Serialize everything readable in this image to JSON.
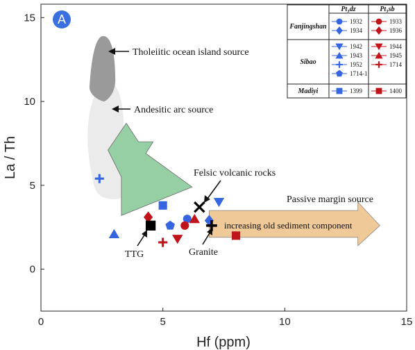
{
  "panel_badge": "A",
  "chart_data": {
    "type": "scatter",
    "xlabel": "Hf (ppm)",
    "ylabel": "La / Th",
    "xlim": [
      0,
      15
    ],
    "ylim": [
      -2.5,
      15.8
    ],
    "x_ticks": [
      0,
      5,
      10,
      15
    ],
    "y_ticks": [
      0,
      5,
      10,
      15
    ],
    "colors": {
      "blue": "#3565e0",
      "red": "#c0141b",
      "black": "#000000"
    },
    "fields": [
      {
        "name": "Tholeiitic ocean island source",
        "color": "#9a9a9a"
      },
      {
        "name": "Andesitic arc source",
        "color": "#ebebeb"
      },
      {
        "name": "Felsic volcanic rocks",
        "color": "#96cfa4"
      },
      {
        "name": "Passive margin source",
        "color": "#f0c999"
      }
    ],
    "arrow_label": "increasing old sediment component",
    "reference_points": [
      {
        "name": "TTG",
        "x": 4.5,
        "y": 2.6,
        "marker": "square",
        "color": "#000000"
      },
      {
        "name": "Granite",
        "x": 7.0,
        "y": 2.6,
        "marker": "plus",
        "color": "#000000"
      },
      {
        "name": "Felsic volcanic rocks",
        "x": 6.5,
        "y": 3.7,
        "marker": "cross",
        "color": "#000000"
      }
    ],
    "series": [
      {
        "name": "1932",
        "marker": "circle",
        "color": "#3565e0",
        "points": [
          [
            6.0,
            3.0
          ]
        ]
      },
      {
        "name": "1934",
        "marker": "diamond",
        "color": "#3565e0",
        "points": [
          [
            6.9,
            2.9
          ]
        ]
      },
      {
        "name": "1942",
        "marker": "triangle-down",
        "color": "#3565e0",
        "points": [
          [
            7.3,
            4.0
          ]
        ]
      },
      {
        "name": "1943",
        "marker": "triangle-up",
        "color": "#3565e0",
        "points": [
          [
            3.0,
            2.1
          ]
        ]
      },
      {
        "name": "1952",
        "marker": "plus",
        "color": "#3565e0",
        "points": [
          [
            2.4,
            5.4
          ]
        ]
      },
      {
        "name": "1714-1",
        "marker": "pentagon",
        "color": "#3565e0",
        "points": [
          [
            5.3,
            2.6
          ]
        ]
      },
      {
        "name": "1399",
        "marker": "square",
        "color": "#3565e0",
        "points": [
          [
            5.0,
            3.8
          ]
        ]
      },
      {
        "name": "1933",
        "marker": "circle",
        "color": "#c0141b",
        "points": [
          [
            5.9,
            2.6
          ]
        ]
      },
      {
        "name": "1936",
        "marker": "diamond",
        "color": "#c0141b",
        "points": [
          [
            4.4,
            3.1
          ]
        ]
      },
      {
        "name": "1944",
        "marker": "triangle-down",
        "color": "#c0141b",
        "points": [
          [
            5.6,
            1.8
          ]
        ]
      },
      {
        "name": "1945",
        "marker": "triangle-up",
        "color": "#c0141b",
        "points": [
          [
            6.3,
            3.0
          ]
        ]
      },
      {
        "name": "1714",
        "marker": "plus",
        "color": "#c0141b",
        "points": [
          [
            5.0,
            1.6
          ]
        ]
      },
      {
        "name": "1400",
        "marker": "square",
        "color": "#c0141b",
        "points": [
          [
            8.0,
            2.0
          ]
        ]
      }
    ]
  },
  "legend": {
    "col_headers": [
      "Pt₃dz",
      "Pt₃sb"
    ],
    "rows": [
      {
        "group": "Fanjingshan",
        "left": [
          {
            "marker": "circle",
            "label": "1932"
          },
          {
            "marker": "diamond",
            "label": "1934"
          }
        ],
        "right": [
          {
            "marker": "circle",
            "label": "1933"
          },
          {
            "marker": "diamond",
            "label": "1936"
          }
        ]
      },
      {
        "group": "Sibao",
        "left": [
          {
            "marker": "triangle-down",
            "label": "1942"
          },
          {
            "marker": "triangle-up",
            "label": "1943"
          },
          {
            "marker": "plus",
            "label": "1952"
          },
          {
            "marker": "pentagon",
            "label": "1714-1"
          }
        ],
        "right": [
          {
            "marker": "triangle-down",
            "label": "1944"
          },
          {
            "marker": "triangle-up",
            "label": "1945"
          },
          {
            "marker": "plus",
            "label": "1714"
          }
        ]
      },
      {
        "group": "Madiyi",
        "left": [
          {
            "marker": "square",
            "label": "1399"
          }
        ],
        "right": [
          {
            "marker": "square",
            "label": "1400"
          }
        ]
      }
    ]
  }
}
